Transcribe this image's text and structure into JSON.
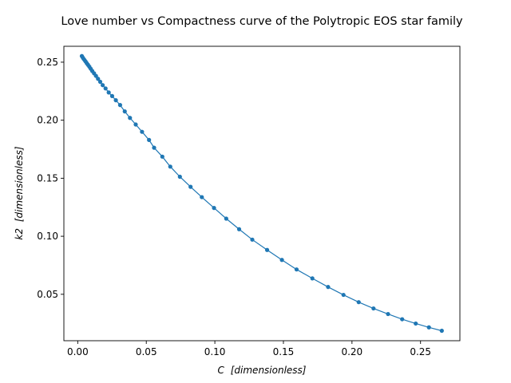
{
  "chart_data": {
    "type": "line",
    "title": "Love number vs Compactness curve of the Polytropic EOS star family",
    "xlabel_prefix": "C",
    "xlabel_unit": "[dimensionless]",
    "ylabel_prefix": "k2",
    "ylabel_unit": "[dimensionless]",
    "xlim": [
      -0.0101,
      0.2787
    ],
    "ylim": [
      0.01,
      0.2637
    ],
    "x_ticks": [
      0.0,
      0.05,
      0.1,
      0.15,
      0.2,
      0.25
    ],
    "x_tick_labels": [
      "0.00",
      "0.05",
      "0.10",
      "0.15",
      "0.20",
      "0.25"
    ],
    "y_ticks": [
      0.05,
      0.1,
      0.15,
      0.2,
      0.25
    ],
    "y_tick_labels": [
      "0.05",
      "0.10",
      "0.15",
      "0.20",
      "0.25"
    ],
    "grid": false,
    "marker": "circle",
    "line_color": "#1f77b4",
    "series": [
      {
        "x": [
          0.003,
          0.0035,
          0.0042,
          0.005,
          0.0058,
          0.0066,
          0.0075,
          0.0085,
          0.0095,
          0.0106,
          0.0119,
          0.0133,
          0.0148,
          0.0164,
          0.0182,
          0.0203,
          0.0226,
          0.0251,
          0.0278,
          0.0309,
          0.0343,
          0.0381,
          0.0423,
          0.0469,
          0.052,
          0.0557,
          0.0617,
          0.0675,
          0.0745,
          0.0823,
          0.0905,
          0.0994,
          0.1083,
          0.1177,
          0.1273,
          0.1381,
          0.1489,
          0.1596,
          0.1711,
          0.1826,
          0.1938,
          0.2049,
          0.2157,
          0.2263,
          0.2366,
          0.2465,
          0.2561,
          0.2655
        ],
        "y": [
          0.2553,
          0.2543,
          0.253,
          0.2518,
          0.2505,
          0.2491,
          0.2477,
          0.2461,
          0.2443,
          0.2424,
          0.2404,
          0.2382,
          0.2357,
          0.2331,
          0.2302,
          0.2274,
          0.2239,
          0.2208,
          0.2172,
          0.2131,
          0.2076,
          0.202,
          0.1963,
          0.19,
          0.183,
          0.1763,
          0.1686,
          0.16,
          0.1513,
          0.1426,
          0.1337,
          0.1244,
          0.1152,
          0.1061,
          0.0971,
          0.0882,
          0.0796,
          0.0714,
          0.0637,
          0.0563,
          0.0495,
          0.0432,
          0.0378,
          0.033,
          0.0285,
          0.0248,
          0.0215,
          0.0186
        ]
      }
    ]
  }
}
